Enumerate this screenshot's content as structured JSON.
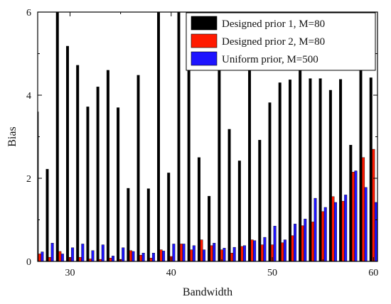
{
  "chart_data": {
    "type": "bar",
    "title": "",
    "xlabel": "Bandwidth",
    "ylabel": "Bias",
    "xlim": [
      26.8,
      60.4
    ],
    "ylim": [
      0,
      6
    ],
    "x_ticks": [
      30,
      40,
      50,
      60
    ],
    "y_ticks": [
      0,
      2,
      4,
      6
    ],
    "grid": false,
    "legend_position": "top-right",
    "x": [
      27,
      28,
      29,
      30,
      31,
      32,
      33,
      34,
      35,
      36,
      37,
      38,
      39,
      40,
      41,
      42,
      43,
      44,
      45,
      46,
      47,
      48,
      49,
      50,
      51,
      52,
      53,
      54,
      55,
      56,
      57,
      58,
      59,
      60
    ],
    "series": [
      {
        "name": "Designed prior 1, M=80",
        "color": "#000000",
        "values": [
          3.6,
          2.22,
          6.0,
          5.18,
          4.72,
          3.72,
          4.2,
          4.6,
          3.7,
          1.76,
          4.48,
          1.75,
          6.0,
          2.13,
          6.0,
          6.0,
          2.5,
          1.57,
          6.0,
          3.18,
          2.42,
          6.0,
          2.92,
          3.82,
          4.3,
          4.37,
          6.0,
          4.4,
          4.4,
          4.12,
          4.38,
          2.8,
          5.6,
          4.42
        ]
      },
      {
        "name": "Designed prior 2, M=80",
        "color": "#ff1a00",
        "values": [
          0.18,
          0.1,
          0.24,
          0.1,
          0.1,
          0.06,
          0.05,
          0.08,
          0.05,
          0.26,
          0.15,
          0.08,
          0.28,
          0.12,
          0.42,
          0.28,
          0.52,
          0.38,
          0.28,
          0.2,
          0.36,
          0.52,
          0.4,
          0.4,
          0.45,
          0.62,
          0.86,
          0.95,
          1.2,
          1.56,
          1.45,
          2.15,
          2.5,
          2.7
        ]
      },
      {
        "name": "Uniform prior, M=500",
        "color": "#1e14ff",
        "values": [
          0.23,
          0.44,
          0.18,
          0.33,
          0.42,
          0.26,
          0.4,
          0.13,
          0.33,
          0.24,
          0.2,
          0.2,
          0.25,
          0.42,
          0.42,
          0.38,
          0.28,
          0.44,
          0.32,
          0.34,
          0.38,
          0.5,
          0.58,
          0.85,
          0.52,
          0.9,
          1.02,
          1.52,
          1.3,
          1.42,
          1.6,
          2.18,
          1.78,
          1.42
        ]
      }
    ]
  }
}
